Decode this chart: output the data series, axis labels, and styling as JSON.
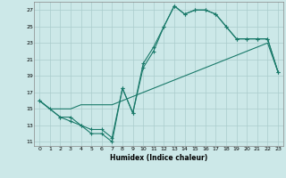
{
  "xlabel": "Humidex (Indice chaleur)",
  "background_color": "#cce8e8",
  "grid_color": "#aacccc",
  "line_color": "#1a7a6a",
  "xlim": [
    -0.5,
    23.5
  ],
  "ylim": [
    10.5,
    28.0
  ],
  "xticks": [
    0,
    1,
    2,
    3,
    4,
    5,
    6,
    7,
    8,
    9,
    10,
    11,
    12,
    13,
    14,
    15,
    16,
    17,
    18,
    19,
    20,
    21,
    22,
    23
  ],
  "yticks": [
    11,
    13,
    15,
    17,
    19,
    21,
    23,
    25,
    27
  ],
  "curve1_x": [
    0,
    1,
    2,
    3,
    4,
    5,
    6,
    7,
    8,
    9,
    10,
    11,
    12,
    13,
    14,
    15,
    16,
    17,
    18,
    19,
    20,
    21,
    22,
    23
  ],
  "curve1_y": [
    16,
    15,
    14,
    14,
    13,
    12,
    12,
    11,
    17.5,
    14.5,
    20.5,
    22.5,
    25.0,
    27.5,
    26.5,
    27.0,
    27.0,
    26.5,
    25.0,
    23.5,
    23.5,
    23.5,
    23.5,
    19.5
  ],
  "curve2_x": [
    0,
    2,
    3,
    4,
    5,
    6,
    7,
    8,
    9,
    10,
    11,
    12,
    13,
    14,
    15,
    16,
    17,
    18,
    19,
    20,
    21,
    22,
    23
  ],
  "curve2_y": [
    16,
    14,
    13.5,
    13,
    12.5,
    12.5,
    11.5,
    17.5,
    14.5,
    20.0,
    22.0,
    25.0,
    27.5,
    26.5,
    27.0,
    27.0,
    26.5,
    25.0,
    23.5,
    23.5,
    23.5,
    23.5,
    19.5
  ],
  "curve3_x": [
    0,
    1,
    2,
    3,
    4,
    5,
    6,
    7,
    8,
    9,
    10,
    11,
    12,
    13,
    14,
    15,
    16,
    17,
    18,
    19,
    20,
    21,
    22,
    23
  ],
  "curve3_y": [
    16,
    15,
    15,
    15,
    15.5,
    15.5,
    15.5,
    15.5,
    16,
    16.5,
    17,
    17.5,
    18,
    18.5,
    19,
    19.5,
    20,
    20.5,
    21,
    21.5,
    22,
    22.5,
    23,
    19.5
  ]
}
